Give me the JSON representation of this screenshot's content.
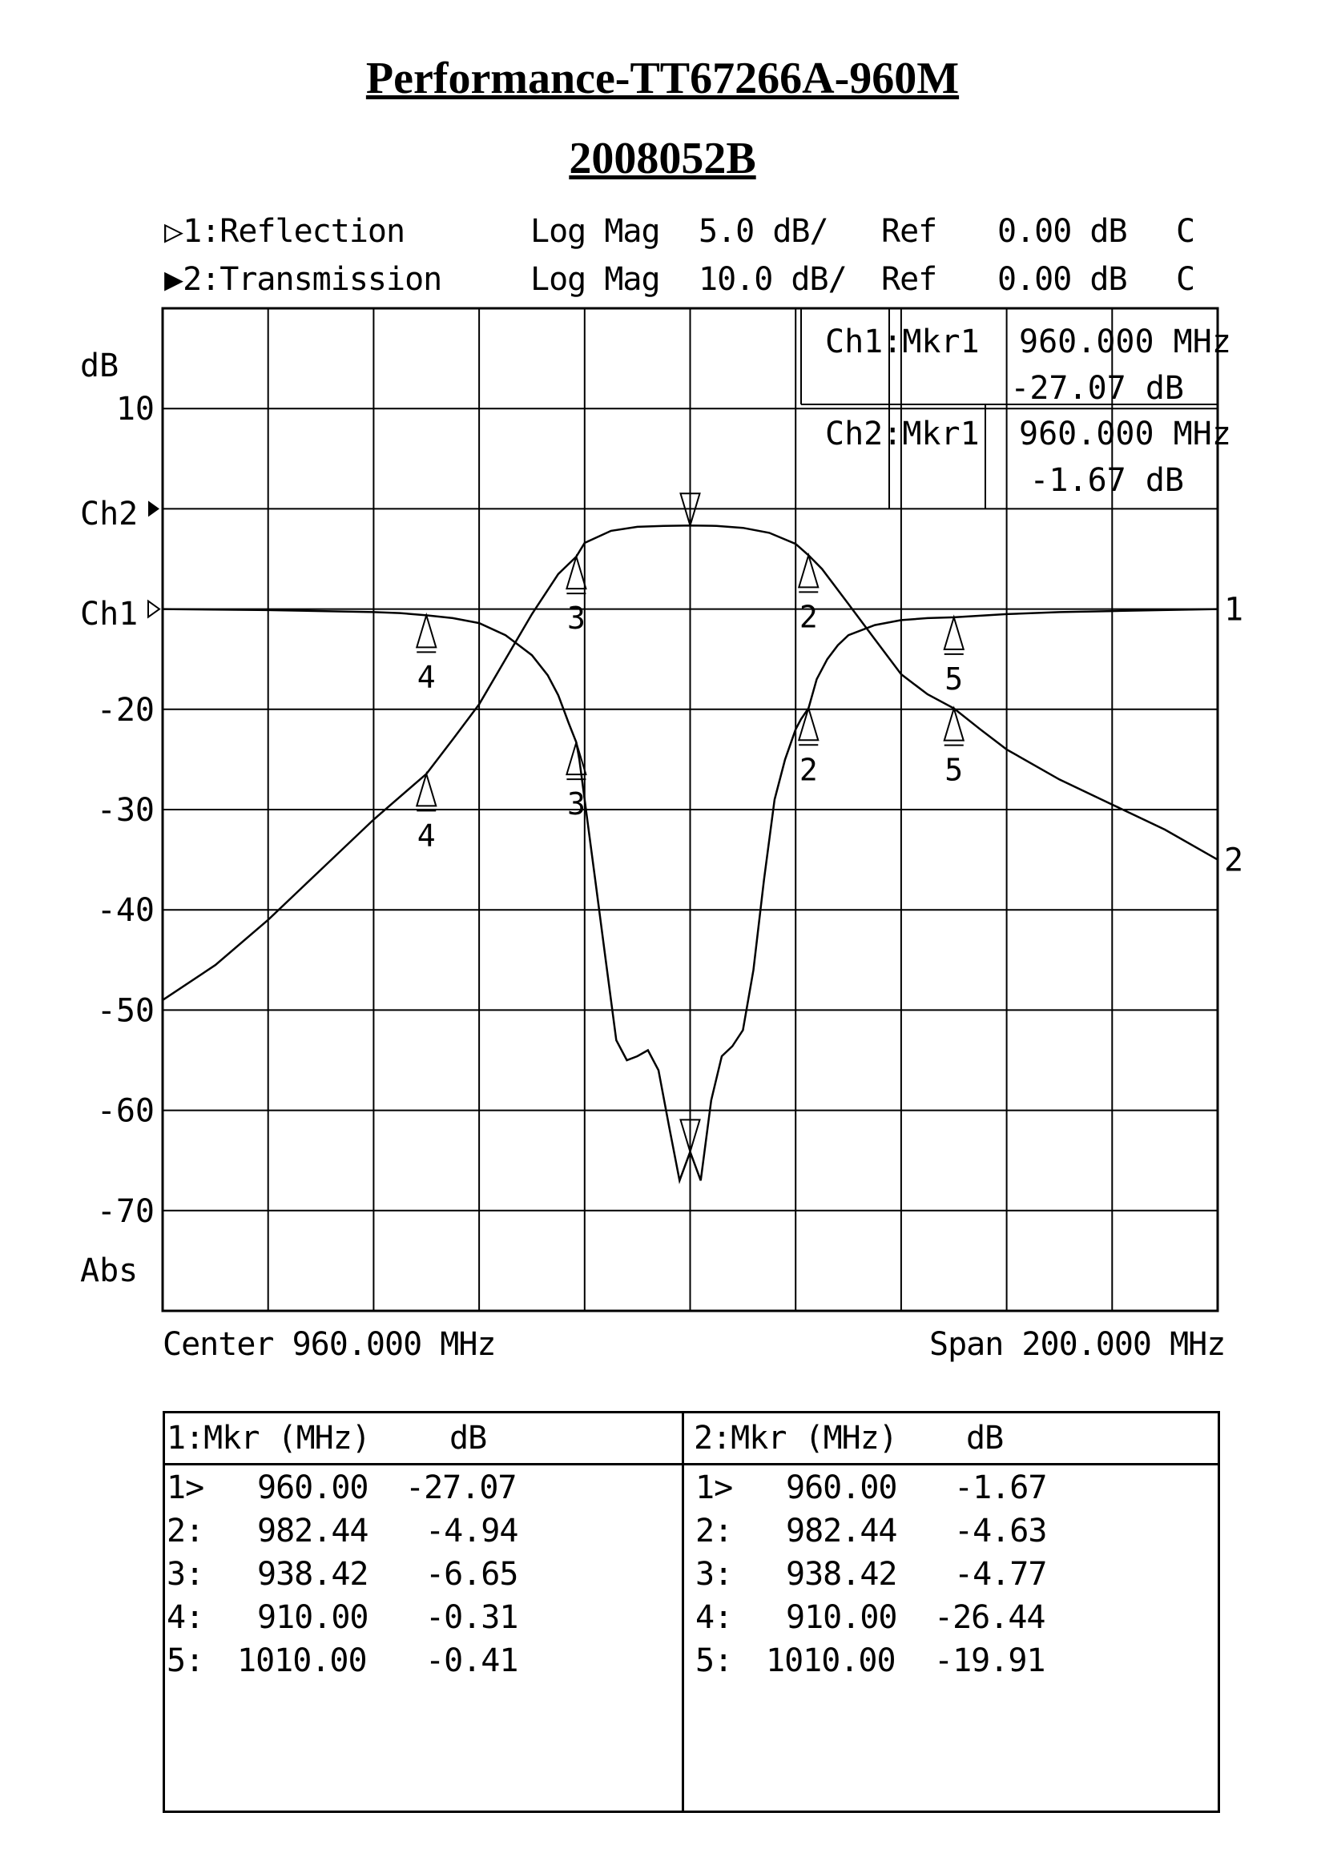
{
  "page": {
    "title": "Performance-TT67266A-960M",
    "subtitle": "2008052B"
  },
  "header": {
    "lines": [
      {
        "channel": "▷1:Reflection",
        "format": "Log Mag",
        "scale": "5.0 dB/",
        "ref_label": "Ref",
        "ref_value": "0.00 dB",
        "flag": "C"
      },
      {
        "channel": "▶2:Transmission",
        "format": "Log Mag",
        "scale": "10.0 dB/",
        "ref_label": "Ref",
        "ref_value": "0.00 dB",
        "flag": "C"
      }
    ]
  },
  "markers_readout": [
    {
      "label": "Ch1:Mkr1",
      "freq": "960.000 MHz",
      "value": "-27.07 dB"
    },
    {
      "label": "Ch2:Mkr1",
      "freq": "960.000 MHz",
      "value": "-1.67 dB"
    }
  ],
  "footer": {
    "center": "Center 960.000 MHz",
    "span": "Span 200.000 MHz"
  },
  "chart_data": {
    "type": "line",
    "xlabel": "",
    "ylabel": "dB",
    "x_range_mhz": [
      860,
      1060
    ],
    "y_ticks": [
      "10",
      "-20",
      "-30",
      "-40",
      "-50",
      "-60",
      "-70"
    ],
    "y_side_labels": [
      "dB",
      "Ch2",
      "Ch1",
      "Abs"
    ],
    "grid": true,
    "ch2_ylim": [
      -80,
      20
    ],
    "ch1_ylim": [
      -50,
      0
    ],
    "series": [
      {
        "name": "1",
        "x": [
          860,
          880,
          900,
          905,
          910,
          915,
          920,
          925,
          930,
          933,
          935,
          936,
          937,
          938.42,
          939,
          940,
          942,
          944,
          946,
          948,
          950,
          952,
          954,
          956,
          958,
          960,
          962,
          964,
          966,
          968,
          970,
          972,
          974,
          976,
          978,
          980,
          981,
          982.44,
          984,
          986,
          988,
          990,
          995,
          1000,
          1005,
          1010,
          1020,
          1030,
          1040,
          1060
        ],
        "y": [
          0,
          -0.05,
          -0.15,
          -0.2,
          -0.31,
          -0.45,
          -0.7,
          -1.3,
          -2.3,
          -3.3,
          -4.3,
          -5,
          -5.7,
          -6.65,
          -7.5,
          -9.5,
          -13.5,
          -17.5,
          -21.5,
          -22.5,
          -22.3,
          -22,
          -23,
          -25.8,
          -28.5,
          -27.07,
          -28.5,
          -24.5,
          -22.3,
          -21.8,
          -21,
          -18,
          -13.5,
          -9.5,
          -7.5,
          -6,
          -5.5,
          -4.94,
          -3.5,
          -2.5,
          -1.8,
          -1.3,
          -0.8,
          -0.55,
          -0.45,
          -0.41,
          -0.25,
          -0.15,
          -0.1,
          0
        ]
      },
      {
        "name": "2",
        "x": [
          860,
          870,
          880,
          890,
          900,
          910,
          915,
          920,
          925,
          930,
          935,
          938.42,
          940,
          945,
          950,
          955,
          960,
          965,
          970,
          975,
          980,
          982.44,
          985,
          990,
          995,
          1000,
          1005,
          1010,
          1015,
          1020,
          1030,
          1040,
          1050,
          1060
        ],
        "y": [
          -49,
          -45.5,
          -41,
          -36,
          -31,
          -26.44,
          -23,
          -19.5,
          -15,
          -10.5,
          -6.5,
          -4.77,
          -3.4,
          -2.2,
          -1.8,
          -1.7,
          -1.67,
          -1.7,
          -1.9,
          -2.4,
          -3.5,
          -4.63,
          -6,
          -9.5,
          -13,
          -16.5,
          -18.5,
          -19.91,
          -22,
          -24,
          -27,
          -29.5,
          -32,
          -35
        ]
      }
    ],
    "marker_freqs_mhz": [
      960.0,
      982.44,
      938.42,
      910.0,
      1010.0
    ],
    "marker_numbers": [
      "1",
      "2",
      "3",
      "4",
      "5"
    ],
    "trace_end_labels": [
      "1",
      "2"
    ]
  },
  "marker_table": {
    "left": {
      "header": "1:Mkr (MHz)",
      "unit": "dB",
      "rows": [
        {
          "id": "1>",
          "freq": "960.00",
          "db": "-27.07"
        },
        {
          "id": "2:",
          "freq": "982.44",
          "db": "-4.94"
        },
        {
          "id": "3:",
          "freq": "938.42",
          "db": "-6.65"
        },
        {
          "id": "4:",
          "freq": "910.00",
          "db": "-0.31"
        },
        {
          "id": "5:",
          "freq": "1010.00",
          "db": "-0.41"
        }
      ]
    },
    "right": {
      "header": "2:Mkr (MHz)",
      "unit": "dB",
      "rows": [
        {
          "id": "1>",
          "freq": "960.00",
          "db": "-1.67"
        },
        {
          "id": "2:",
          "freq": "982.44",
          "db": "-4.63"
        },
        {
          "id": "3:",
          "freq": "938.42",
          "db": "-4.77"
        },
        {
          "id": "4:",
          "freq": "910.00",
          "db": "-26.44"
        },
        {
          "id": "5:",
          "freq": "1010.00",
          "db": "-19.91"
        }
      ]
    }
  }
}
